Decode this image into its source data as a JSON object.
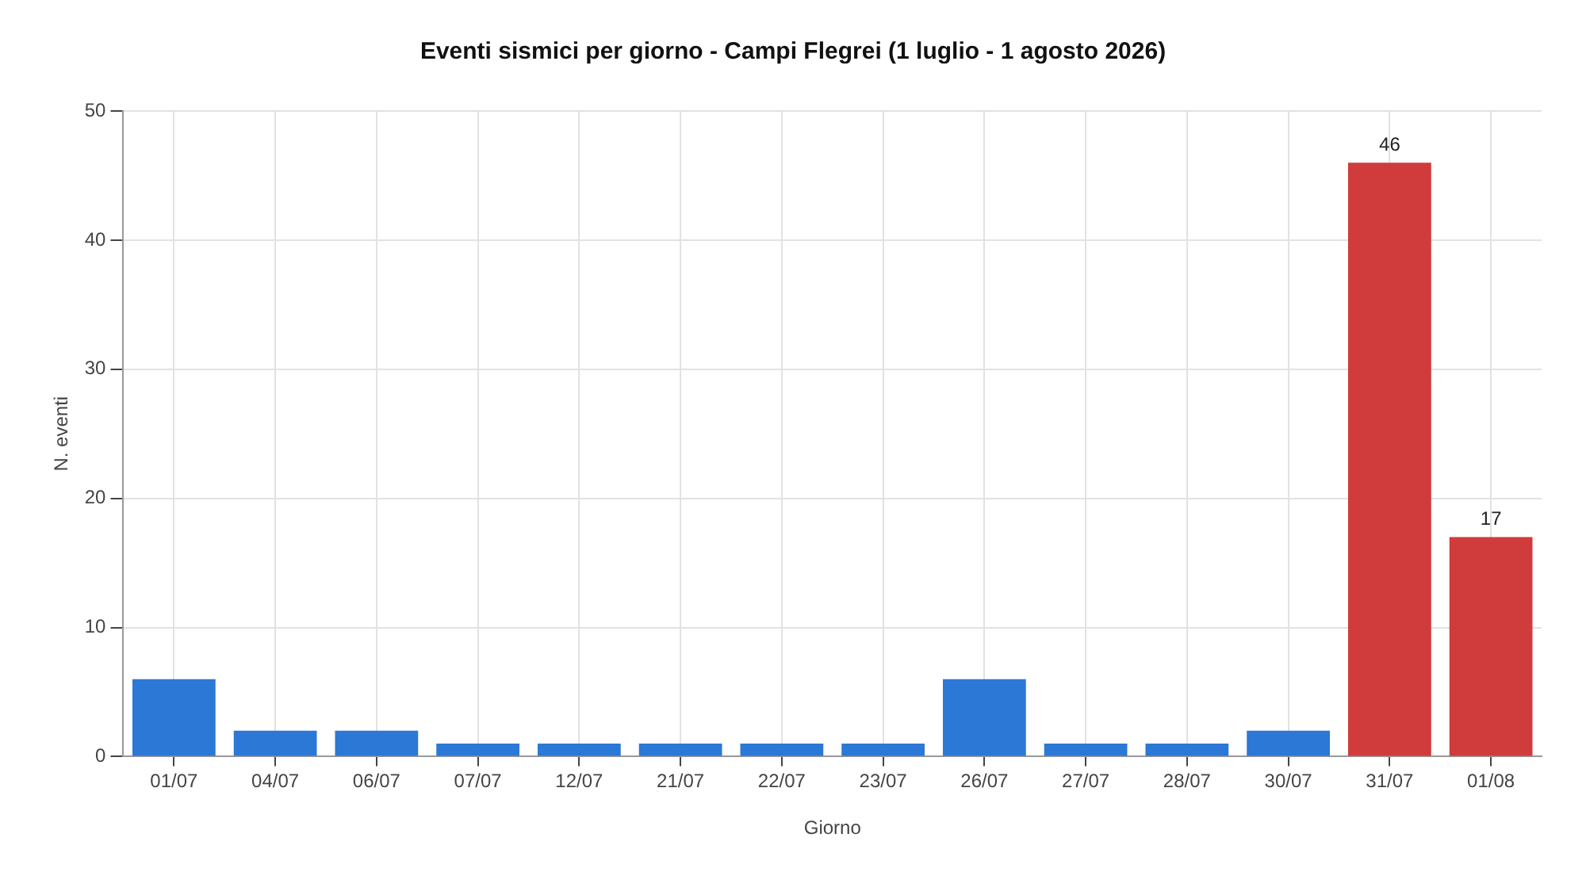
{
  "chart_data": {
    "type": "bar",
    "title": "Eventi sismici per giorno - Campi Flegrei (1 luglio - 1 agosto 2026)",
    "xlabel": "Giorno",
    "ylabel": "N. eventi",
    "categories": [
      "01/07",
      "04/07",
      "06/07",
      "07/07",
      "12/07",
      "21/07",
      "22/07",
      "23/07",
      "26/07",
      "27/07",
      "28/07",
      "30/07",
      "31/07",
      "01/08"
    ],
    "values": [
      6,
      2,
      2,
      1,
      1,
      1,
      1,
      1,
      6,
      1,
      1,
      2,
      46,
      17
    ],
    "colors": [
      "#2b78d6",
      "#2b78d6",
      "#2b78d6",
      "#2b78d6",
      "#2b78d6",
      "#2b78d6",
      "#2b78d6",
      "#2b78d6",
      "#2b78d6",
      "#2b78d6",
      "#2b78d6",
      "#2b78d6",
      "#d03b3b",
      "#d03b3b"
    ],
    "value_labels": [
      null,
      null,
      null,
      null,
      null,
      null,
      null,
      null,
      null,
      null,
      null,
      null,
      "46",
      "17"
    ],
    "ylim": [
      0,
      50
    ],
    "yticks": [
      0,
      10,
      20,
      30,
      40,
      50
    ],
    "grid": true,
    "legend": false
  }
}
